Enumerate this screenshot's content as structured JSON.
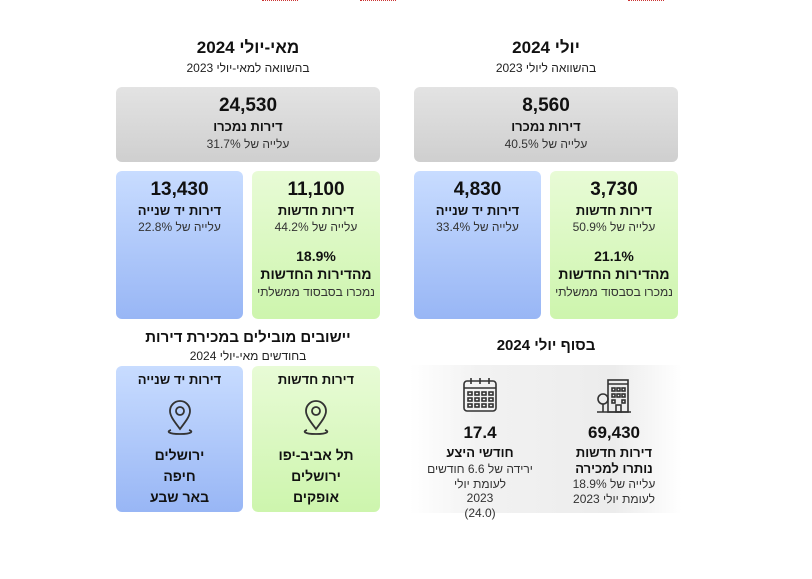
{
  "right": {
    "title": "יולי 2024",
    "subtitle": "בהשוואה ליולי 2023",
    "sold": {
      "value": "8,560",
      "label": "דירות נמכרו",
      "change": "עלייה של 40.5%"
    },
    "new": {
      "value": "3,730",
      "label": "דירות חדשות",
      "change": "עלייה של 50.9%",
      "pct": "21.1%",
      "pct_label": "מהדירות החדשות",
      "pct_note": "נמכרו בסבסוד ממשלתי"
    },
    "used": {
      "value": "4,830",
      "label": "דירות יד שנייה",
      "change": "עלייה של 33.4%"
    }
  },
  "left": {
    "title": "מאי-יולי 2024",
    "subtitle": "בהשוואה למאי-יולי 2023",
    "sold": {
      "value": "24,530",
      "label": "דירות נמכרו",
      "change": "עלייה של 31.7%"
    },
    "new": {
      "value": "11,100",
      "label": "דירות חדשות",
      "change": "עלייה של 44.2%",
      "pct": "18.9%",
      "pct_label": "מהדירות החדשות",
      "pct_note": "נמכרו בסבסוד ממשלתי"
    },
    "used": {
      "value": "13,430",
      "label": "דירות יד שנייה",
      "change": "עלייה של 22.8%"
    }
  },
  "end_july": {
    "title": "בסוף יולי 2024",
    "inventory": {
      "value": "69,430",
      "label1": "דירות חדשות",
      "label2": "נותרו למכירה",
      "note1": "עלייה של 18.9%",
      "note2": "לעומת יולי 2023",
      "icon": "building-icon"
    },
    "supply": {
      "value": "17.4",
      "label": "חודשי היצע",
      "note1": "ירידה של 6.6 חודשים",
      "note2": "לעומת יולי",
      "note3": "2023",
      "note4": "(24.0)",
      "icon": "calendar-icon"
    }
  },
  "leading": {
    "title": "יישובים מובילים במכירת דירות",
    "subtitle": "בחודשים מאי-יולי 2024",
    "new": {
      "label": "דירות חדשות",
      "cities": [
        "תל אביב-יפו",
        "ירושלים",
        "אופקים"
      ],
      "icon": "location-pin-icon"
    },
    "used": {
      "label": "דירות יד שנייה",
      "cities": [
        "ירושלים",
        "חיפה",
        "באר שבע"
      ],
      "icon": "location-pin-icon"
    }
  },
  "colors": {
    "green": "#cdf5ad",
    "blue": "#98b6f5",
    "gray": "#d6d6d6"
  }
}
